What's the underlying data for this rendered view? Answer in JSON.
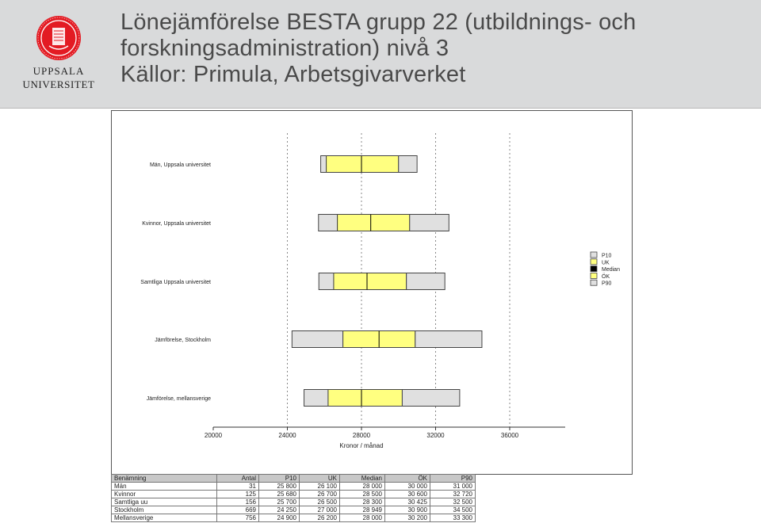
{
  "header": {
    "logo": {
      "line1": "UPPSALA",
      "line2": "UNIVERSITET"
    },
    "title_lines": [
      "Lönejämförelse BESTA grupp 22 (utbildnings- och",
      "forskningsadministration) nivå 3",
      "Källor: Primula, Arbetsgivarverket"
    ]
  },
  "colors": {
    "yellow": "#ffff80",
    "grey": "#e0e0e0",
    "median": "#000000",
    "header_bg": "#d9dadb",
    "brand_red": "#e31b23"
  },
  "chart_data": {
    "type": "boxplot-horizontal",
    "title": "",
    "xlabel": "Kronor / månad",
    "ylabel": "",
    "xlim": [
      20000,
      36000
    ],
    "x_ticks": [
      20000,
      24000,
      28000,
      32000,
      36000
    ],
    "x_tick_labels": [
      "20000",
      "24000",
      "28000",
      "32000",
      "36000"
    ],
    "grid": true,
    "categories": [
      "Män, Uppsala universitet",
      "Kvinnor, Uppsala universitet",
      "Samtliga Uppsala universitet",
      "Jämförelse, Stockholm",
      "Jämförelse, mellansverige"
    ],
    "series": [
      {
        "name": "P10",
        "values": [
          25800,
          25680,
          25700,
          24250,
          24900
        ]
      },
      {
        "name": "UK",
        "values": [
          26100,
          26700,
          26500,
          27000,
          26200
        ]
      },
      {
        "name": "Median",
        "values": [
          28000,
          28500,
          28300,
          28949,
          28000
        ]
      },
      {
        "name": "ÖK",
        "values": [
          30000,
          30600,
          30425,
          30900,
          30200
        ]
      },
      {
        "name": "P90",
        "values": [
          31000,
          32720,
          32500,
          34500,
          33300
        ]
      }
    ],
    "legend": {
      "position": "right",
      "entries": [
        {
          "label": "P10",
          "color": "#e0e0e0"
        },
        {
          "label": "UK",
          "color": "#ffff80"
        },
        {
          "label": "Median",
          "color": "#000000"
        },
        {
          "label": "ÖK",
          "color": "#ffff80"
        },
        {
          "label": "P90",
          "color": "#e0e0e0"
        }
      ]
    }
  },
  "table": {
    "headers": [
      "Benämning",
      "Antal",
      "P10",
      "UK",
      "Median",
      "ÖK",
      "P90"
    ],
    "rows": [
      [
        "Män",
        "31",
        "25 800",
        "26 100",
        "28 000",
        "30 000",
        "31 000"
      ],
      [
        "Kvinnor",
        "125",
        "25 680",
        "26 700",
        "28 500",
        "30 600",
        "32 720"
      ],
      [
        "Samtliga uu",
        "156",
        "25 700",
        "26 500",
        "28 300",
        "30 425",
        "32 500"
      ],
      [
        "Stockholm",
        "669",
        "24 250",
        "27 000",
        "28 949",
        "30 900",
        "34 500"
      ],
      [
        "Mellansverige",
        "756",
        "24 900",
        "26 200",
        "28 000",
        "30 200",
        "33 300"
      ]
    ]
  }
}
